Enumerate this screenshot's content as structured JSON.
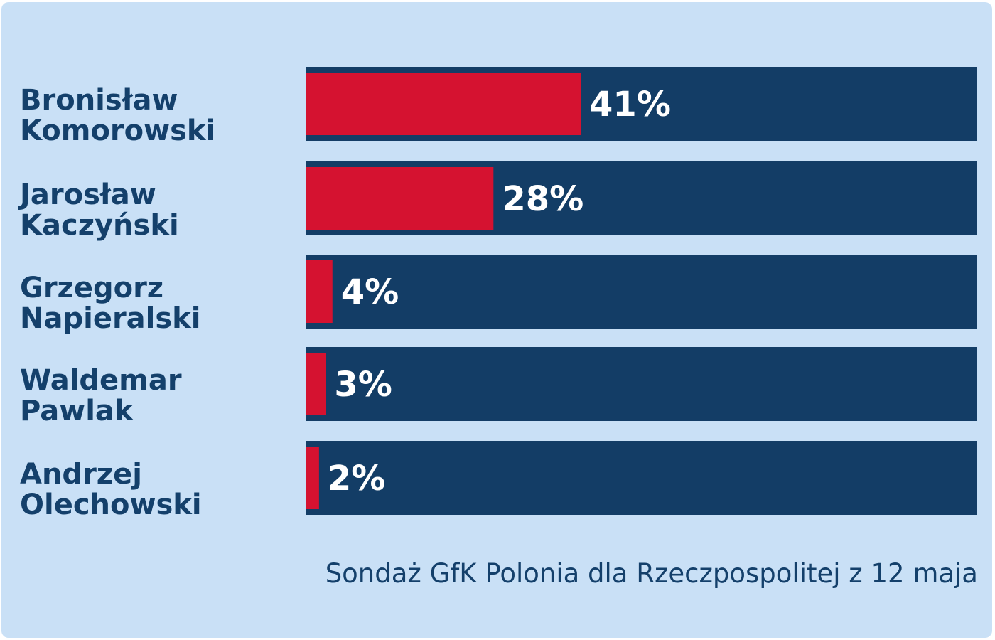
{
  "chart_data": {
    "type": "bar",
    "orientation": "horizontal",
    "categories": [
      [
        "Bronisław",
        "Komorowski"
      ],
      [
        "Jarosław",
        "Kaczyński"
      ],
      [
        "Grzegorz",
        "Napieralski"
      ],
      [
        "Waldemar",
        "Pawlak"
      ],
      [
        "Andrzej",
        "Olechowski"
      ]
    ],
    "values": [
      41,
      28,
      4,
      3,
      2
    ],
    "value_labels": [
      "41%",
      "28%",
      "4%",
      "3%",
      "2%"
    ],
    "xlim": [
      0,
      100
    ],
    "grid": false,
    "legend": "none",
    "title": "",
    "xlabel": "",
    "ylabel": ""
  },
  "source_note": "Sondaż GfK Polonia dla Rzeczpospolitej z 12 maja",
  "colors": {
    "background": "#c9e0f6",
    "track": "#133d66",
    "bar": "#d51230",
    "label_text": "#14406b",
    "value_text": "#ffffff"
  }
}
